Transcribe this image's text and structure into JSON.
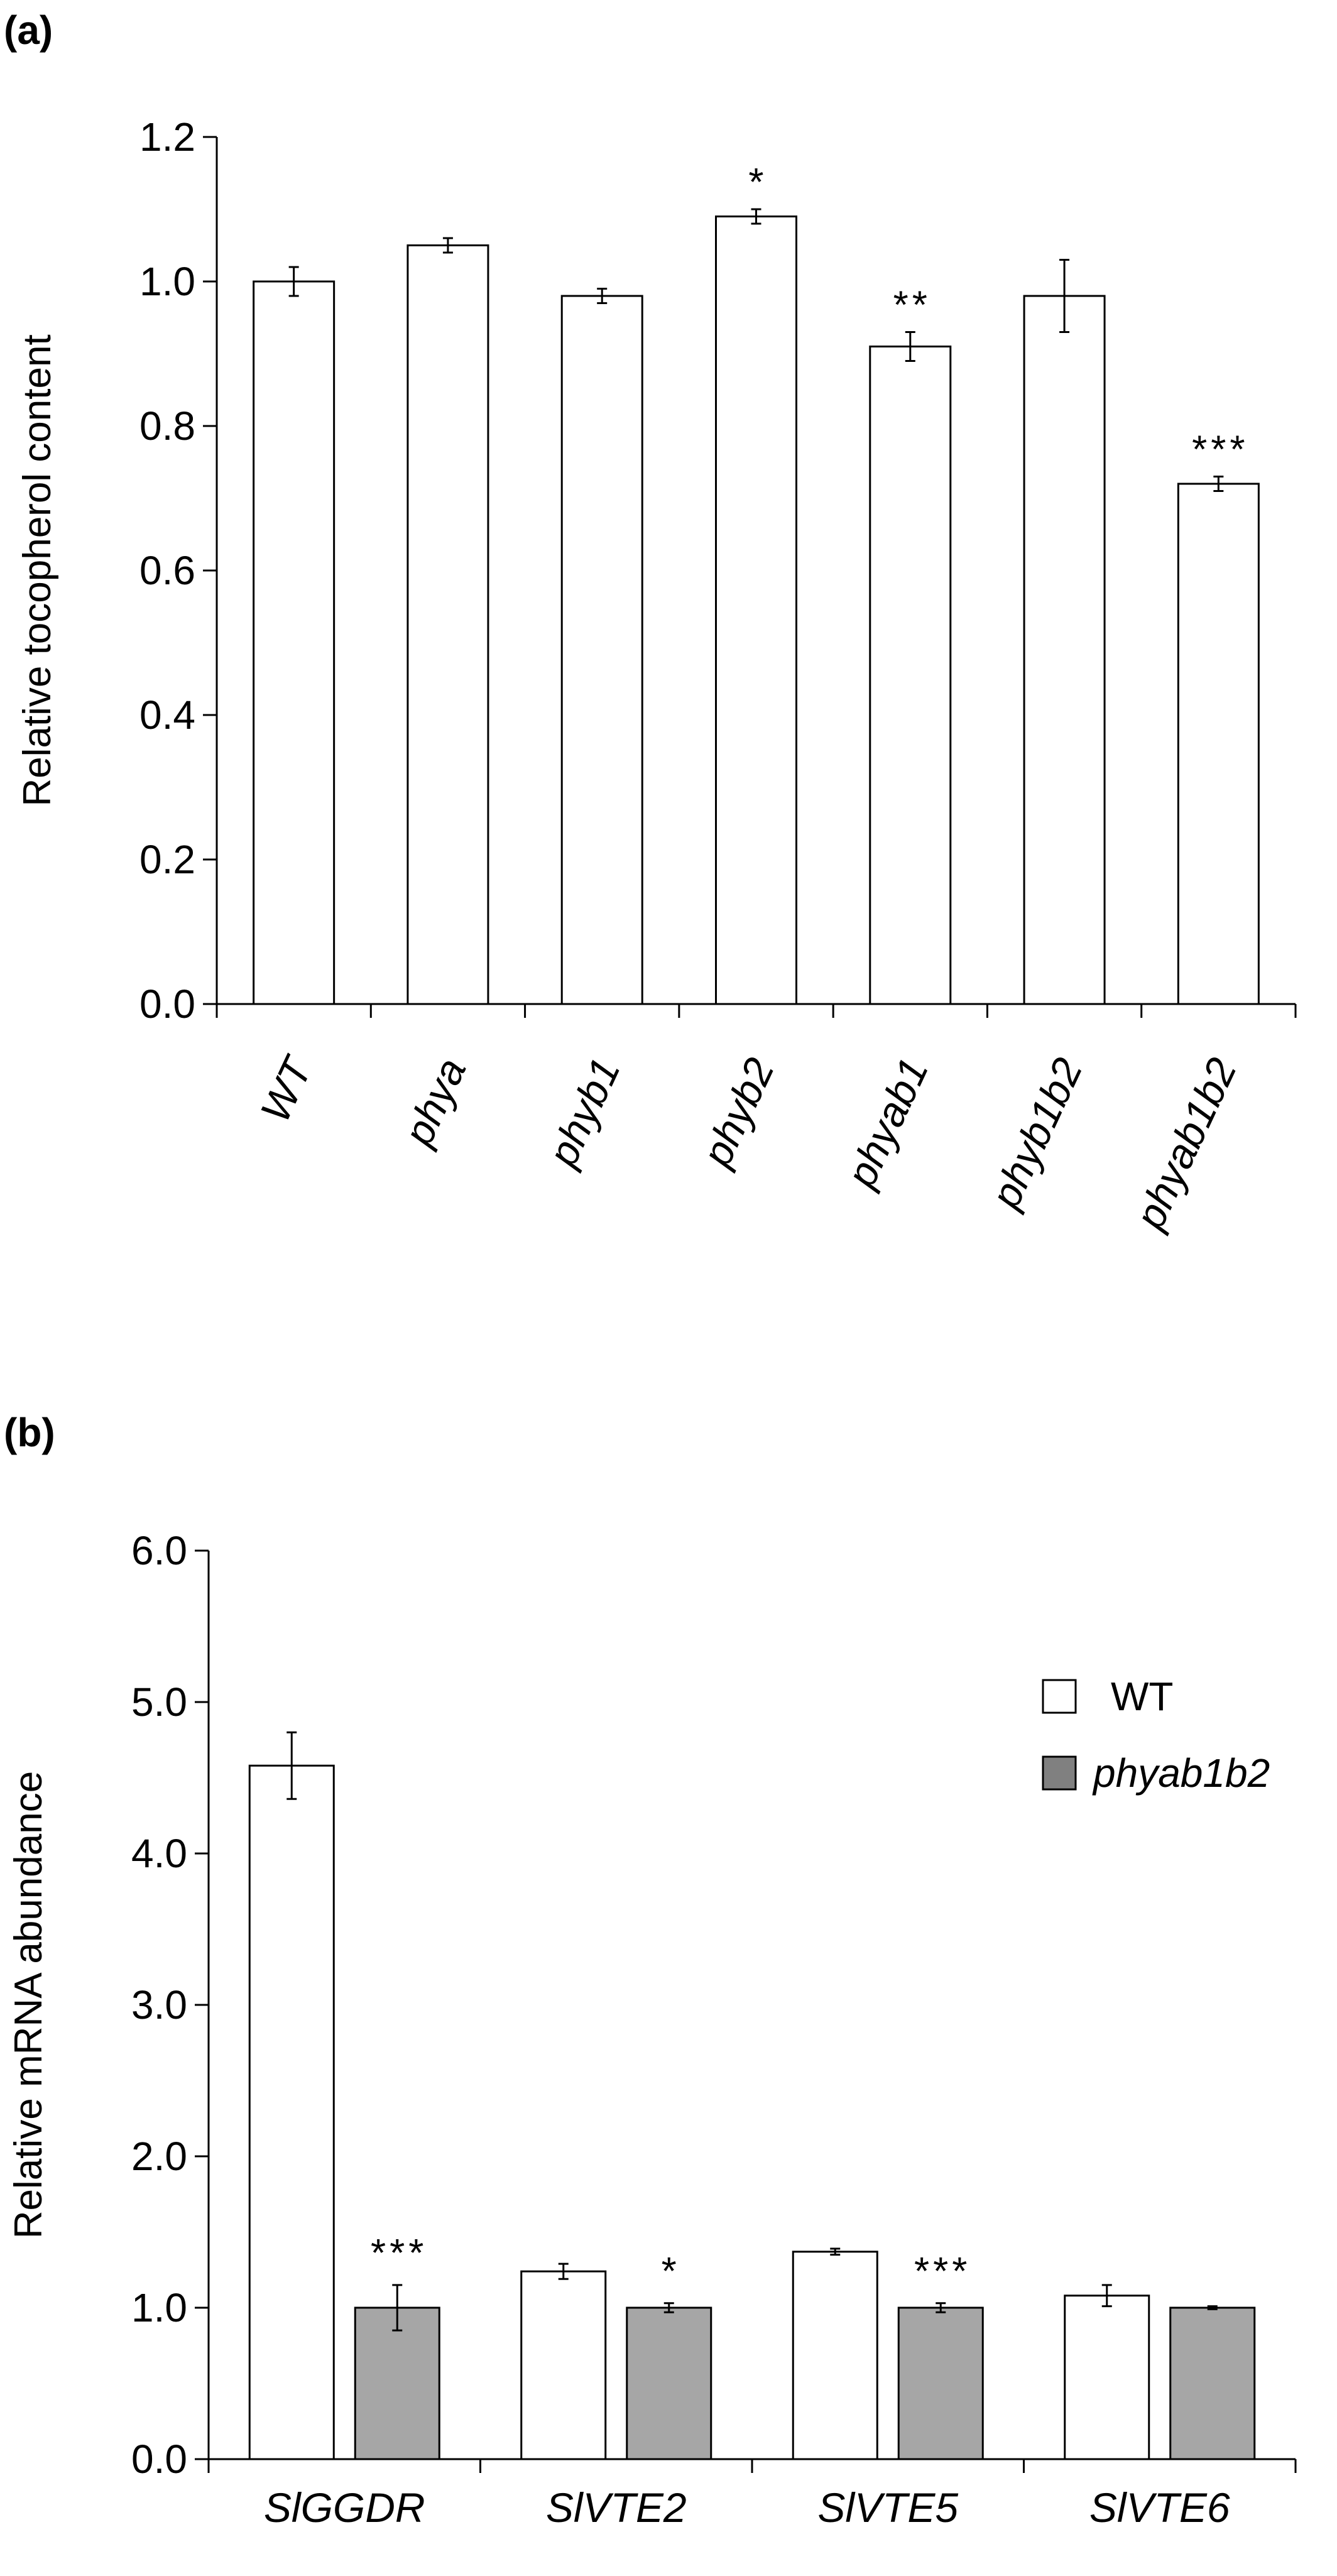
{
  "chart_data": [
    {
      "panel_label": "(a)",
      "type": "bar",
      "ylabel": "Relative tocopherol content",
      "ylim": [
        0,
        1.2
      ],
      "yticks": [
        "0.0",
        "0.2",
        "0.4",
        "0.6",
        "0.8",
        "1.0",
        "1.2"
      ],
      "categories": [
        "WT",
        "phya",
        "phyb1",
        "phyb2",
        "phyab1",
        "phyb1b2",
        "phyab1b2"
      ],
      "values": [
        1.0,
        1.05,
        0.98,
        1.09,
        0.91,
        0.98,
        0.72
      ],
      "errors": [
        0.02,
        0.01,
        0.01,
        0.01,
        0.02,
        0.05,
        0.01
      ],
      "significance": [
        "",
        "",
        "",
        "*",
        "**",
        "",
        "***"
      ],
      "bar_color": "#ffffff",
      "grid": false
    },
    {
      "panel_label": "(b)",
      "type": "bar",
      "ylabel": "Relative mRNA abundance",
      "ylim": [
        0,
        6.0
      ],
      "yticks": [
        "0.0",
        "1.0",
        "2.0",
        "3.0",
        "4.0",
        "5.0",
        "6.0"
      ],
      "categories": [
        "SlGGDR",
        "SlVTE2",
        "SlVTE5",
        "SlVTE6"
      ],
      "series": [
        {
          "name": "WT",
          "color": "#ffffff",
          "values": [
            4.58,
            1.24,
            1.37,
            1.08
          ],
          "errors": [
            0.22,
            0.05,
            0.02,
            0.07
          ],
          "significance": [
            "",
            "",
            "",
            ""
          ]
        },
        {
          "name": "phyab1b2",
          "color": "#a6a6a6",
          "values": [
            1.0,
            1.0,
            1.0,
            1.0
          ],
          "errors": [
            0.15,
            0.03,
            0.03,
            0.01
          ],
          "significance": [
            "***",
            "*",
            "***",
            ""
          ]
        }
      ],
      "legend_position": "top-right",
      "grid": false
    }
  ]
}
